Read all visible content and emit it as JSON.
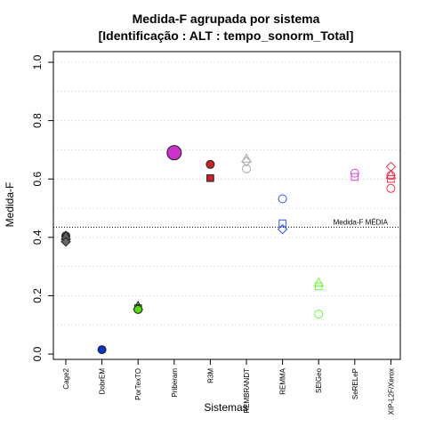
{
  "chart_data": {
    "type": "scatter",
    "title": "Medida-F agrupada por sistema",
    "subtitle": "[Identificação : ALT : tempo_sonorm_Total]",
    "xlabel": "Sistemas",
    "ylabel": "Medida-F",
    "ylim": [
      0,
      1
    ],
    "yticks": [
      "0.0",
      "0.2",
      "0.4",
      "0.6",
      "0.8",
      "1.0"
    ],
    "grid": "horizontal-dotted",
    "categories": [
      "Cage2",
      "DobrEM",
      "PorTexTO",
      "Priberam",
      "R3M",
      "REMBRANDT",
      "REMMA",
      "SEIGeo",
      "SeRELeP",
      "XIP-L2F/Xerox"
    ],
    "reference_line": {
      "label": "Medida-F MÉDIA",
      "value": 0.435
    },
    "series": [
      {
        "category": "Cage2",
        "color": "#666666",
        "filled": true,
        "points": [
          {
            "shape": "circle",
            "value": 0.405
          },
          {
            "shape": "square",
            "value": 0.398
          },
          {
            "shape": "triangle",
            "value": 0.405
          },
          {
            "shape": "diamond",
            "value": 0.385
          }
        ]
      },
      {
        "category": "DobrEM",
        "color": "#0033cc",
        "filled": true,
        "points": [
          {
            "shape": "circle",
            "value": 0.015
          }
        ]
      },
      {
        "category": "PorTexTO",
        "color": "#55dd00",
        "filled": true,
        "points": [
          {
            "shape": "triangle",
            "value": 0.165
          },
          {
            "shape": "square",
            "value": 0.157
          },
          {
            "shape": "circle",
            "value": 0.153
          }
        ]
      },
      {
        "category": "Priberam",
        "color": "#cc33cc",
        "filled": true,
        "points": [
          {
            "shape": "big-circle",
            "value": 0.69
          }
        ]
      },
      {
        "category": "R3M",
        "color": "#cc2222",
        "filled": true,
        "points": [
          {
            "shape": "circle",
            "value": 0.65
          },
          {
            "shape": "square",
            "value": 0.603
          }
        ]
      },
      {
        "category": "REMBRANDT",
        "color": "#aaaaaa",
        "filled": false,
        "points": [
          {
            "shape": "triangle",
            "value": 0.67
          },
          {
            "shape": "diamond",
            "value": 0.66
          },
          {
            "shape": "circle",
            "value": 0.635
          }
        ]
      },
      {
        "category": "REMMA",
        "color": "#3355ee",
        "filled": false,
        "points": [
          {
            "shape": "circle",
            "value": 0.532
          },
          {
            "shape": "square",
            "value": 0.448
          },
          {
            "shape": "diamond",
            "value": 0.428
          }
        ]
      },
      {
        "category": "SEIGeo",
        "color": "#66ff33",
        "filled": false,
        "points": [
          {
            "shape": "triangle",
            "value": 0.245
          },
          {
            "shape": "square",
            "value": 0.232
          },
          {
            "shape": "circle",
            "value": 0.137
          }
        ]
      },
      {
        "category": "SeRELeP",
        "color": "#dd44dd",
        "filled": false,
        "points": [
          {
            "shape": "circle",
            "value": 0.62
          },
          {
            "shape": "square",
            "value": 0.607
          }
        ]
      },
      {
        "category": "XIP-L2F/Xerox",
        "color": "#ee3344",
        "filled": false,
        "points": [
          {
            "shape": "diamond",
            "value": 0.642
          },
          {
            "shape": "triangle",
            "value": 0.615
          },
          {
            "shape": "square",
            "value": 0.6
          },
          {
            "shape": "circle",
            "value": 0.612
          },
          {
            "shape": "circle",
            "value": 0.568
          }
        ]
      }
    ]
  }
}
